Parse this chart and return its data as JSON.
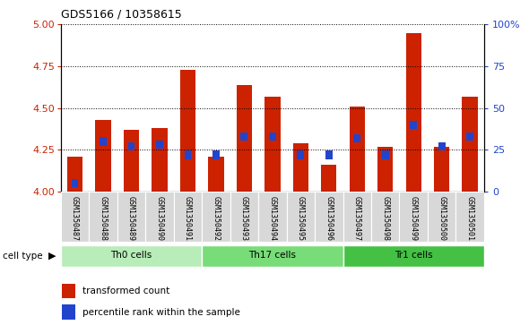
{
  "title": "GDS5166 / 10358615",
  "samples": [
    "GSM1350487",
    "GSM1350488",
    "GSM1350489",
    "GSM1350490",
    "GSM1350491",
    "GSM1350492",
    "GSM1350493",
    "GSM1350494",
    "GSM1350495",
    "GSM1350496",
    "GSM1350497",
    "GSM1350498",
    "GSM1350499",
    "GSM1350500",
    "GSM1350501"
  ],
  "transformed_count": [
    4.21,
    4.43,
    4.37,
    4.38,
    4.73,
    4.21,
    4.64,
    4.57,
    4.29,
    4.16,
    4.51,
    4.27,
    4.95,
    4.27,
    4.57
  ],
  "percentile_rank": [
    5,
    30,
    27,
    28,
    22,
    22,
    33,
    33,
    22,
    22,
    32,
    22,
    40,
    27,
    33
  ],
  "cell_groups": [
    {
      "label": "Th0 cells",
      "start": 0,
      "end": 5,
      "color": "#b8ecb8"
    },
    {
      "label": "Th17 cells",
      "start": 5,
      "end": 10,
      "color": "#78dc78"
    },
    {
      "label": "Tr1 cells",
      "start": 10,
      "end": 15,
      "color": "#44c044"
    }
  ],
  "ylim": [
    4.0,
    5.0
  ],
  "y2lim": [
    0,
    100
  ],
  "yticks": [
    4.0,
    4.25,
    4.5,
    4.75,
    5.0
  ],
  "y2ticks": [
    0,
    25,
    50,
    75,
    100
  ],
  "bar_color": "#cc2200",
  "blue_color": "#2244cc",
  "bar_width": 0.55,
  "background_label": "#d8d8d8"
}
